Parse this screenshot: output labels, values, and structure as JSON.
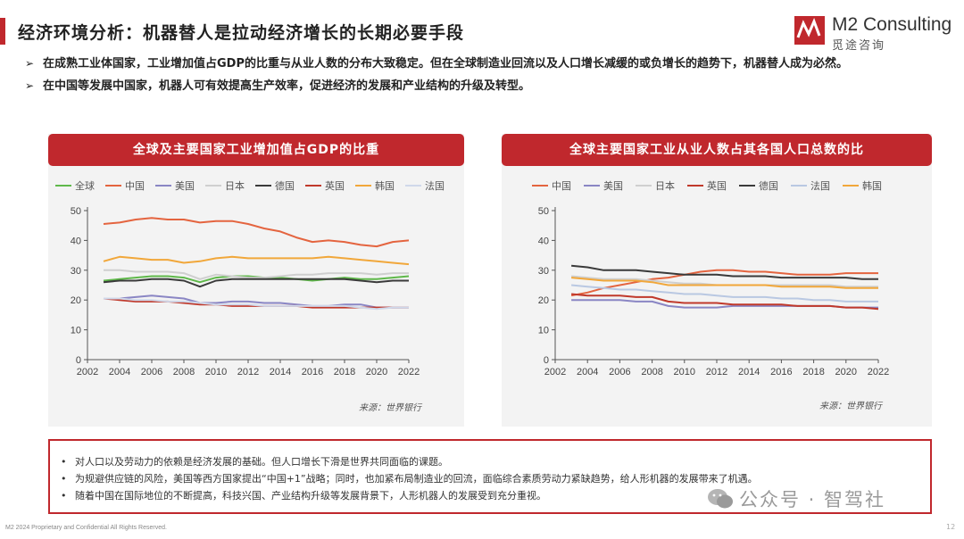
{
  "header": {
    "title": "经济环境分析：机器替人是拉动经济增长的长期必要手段",
    "logo_en": "M2 Consulting",
    "logo_cn": "觅途咨询"
  },
  "bullets": [
    "在成熟工业体国家，工业增加值占GDP的比重与从业人数的分布大致稳定。但在全球制造业回流以及人口增长减缓的或负增长的趋势下，机器替人成为必然。",
    "在中国等发展中国家，机器人可有效提高生产效率，促进经济的发展和产业结构的升级及转型。"
  ],
  "note": {
    "items": [
      "对人口以及劳动力的依赖是经济发展的基础。但人口增长下滑是世界共同面临的课题。",
      "为规避供应链的风险，美国等西方国家提出“中国+1”战略；同时，也加紧布局制造业的回流，面临综合素质劳动力紧缺趋势，给人形机器的发展带来了机遇。",
      "随着中国在国际地位的不断提高，科技兴国、产业结构升级等发展背景下，人形机器人的发展受到充分重视。"
    ]
  },
  "footer": {
    "text": "M2 2024 Proprietary and Confidential All Rights Reserved.",
    "page": "12"
  },
  "watermark": {
    "text": "公众号 · 智驾社"
  },
  "chart_data": [
    {
      "type": "line",
      "title": "全球及主要国家工业增加值占GDP的比重",
      "source": "来源：世界银行",
      "x": [
        2003,
        2004,
        2005,
        2006,
        2007,
        2008,
        2009,
        2010,
        2011,
        2012,
        2013,
        2014,
        2015,
        2016,
        2017,
        2018,
        2019,
        2020,
        2021,
        2022
      ],
      "xticks": [
        2002,
        2004,
        2006,
        2008,
        2010,
        2012,
        2014,
        2016,
        2018,
        2020,
        2022
      ],
      "yticks": [
        0,
        10,
        20,
        30,
        40,
        50
      ],
      "ylim": [
        0,
        50
      ],
      "xlim": [
        2002,
        2022
      ],
      "series": [
        {
          "name": "全球",
          "color": "#5fb84a",
          "values": [
            26.5,
            27,
            27.5,
            28,
            28,
            27.5,
            26,
            27.5,
            28,
            28,
            27.5,
            27.5,
            27,
            26.5,
            27,
            27.5,
            27,
            27,
            27.5,
            28
          ]
        },
        {
          "name": "中国",
          "color": "#e4643f",
          "values": [
            45.5,
            46,
            47,
            47.5,
            47,
            47,
            46,
            46.5,
            46.5,
            45.5,
            44,
            43,
            41,
            39.5,
            40,
            39.5,
            38.5,
            38,
            39.5,
            40
          ]
        },
        {
          "name": "美国",
          "color": "#8a86c4",
          "values": [
            20.5,
            20.5,
            21,
            21.5,
            21,
            20.5,
            19,
            19,
            19.5,
            19.5,
            19,
            19,
            18.5,
            18,
            18,
            18.5,
            18.5,
            17.5,
            17.5,
            17.5
          ]
        },
        {
          "name": "日本",
          "color": "#cfcfcf",
          "values": [
            30,
            30,
            29.5,
            29.5,
            29.5,
            29,
            27,
            28.5,
            28,
            27.5,
            27.5,
            28,
            28.5,
            28.5,
            29,
            29,
            29,
            28.5,
            29,
            29
          ]
        },
        {
          "name": "德国",
          "color": "#3a3a3a",
          "values": [
            26,
            26.5,
            26.5,
            27,
            27,
            26.5,
            24.5,
            26.5,
            27,
            27,
            27,
            27,
            27,
            27,
            27,
            27,
            26.5,
            26,
            26.5,
            26.5
          ]
        },
        {
          "name": "英国",
          "color": "#c0392b",
          "values": [
            20.5,
            20,
            19.5,
            19.5,
            19.5,
            19,
            18.5,
            18.5,
            18,
            18,
            18,
            18,
            18,
            17.5,
            17.5,
            17.5,
            17.5,
            17.5,
            17.5,
            17.5
          ]
        },
        {
          "name": "韩国",
          "color": "#f1a73a",
          "values": [
            33,
            34.5,
            34,
            33.5,
            33.5,
            32.5,
            33,
            34,
            34.5,
            34,
            34,
            34,
            34,
            34,
            34.5,
            34,
            33.5,
            33,
            32.5,
            32
          ]
        },
        {
          "name": "法国",
          "color": "#cfd8ea",
          "values": [
            20.5,
            20.5,
            20,
            20,
            19.5,
            19.5,
            19,
            18.5,
            18.5,
            18.5,
            18,
            18,
            18,
            18,
            18,
            18,
            17.5,
            17,
            17.5,
            17.5
          ]
        }
      ]
    },
    {
      "type": "line",
      "title": "全球主要国家工业从业人数占其各国人口总数的比",
      "source": "来源：世界银行",
      "x": [
        2003,
        2004,
        2005,
        2006,
        2007,
        2008,
        2009,
        2010,
        2011,
        2012,
        2013,
        2014,
        2015,
        2016,
        2017,
        2018,
        2019,
        2020,
        2021,
        2022
      ],
      "xticks": [
        2002,
        2004,
        2006,
        2008,
        2010,
        2012,
        2014,
        2016,
        2018,
        2020,
        2022
      ],
      "yticks": [
        0,
        10,
        20,
        30,
        40,
        50
      ],
      "ylim": [
        0,
        50
      ],
      "xlim": [
        2002,
        2022
      ],
      "series": [
        {
          "name": "中国",
          "color": "#e4643f",
          "values": [
            21.5,
            22.5,
            24,
            25,
            26,
            27,
            27.5,
            28.5,
            29.5,
            30,
            30,
            29.5,
            29.5,
            29,
            28.5,
            28.5,
            28.5,
            29,
            29,
            29
          ]
        },
        {
          "name": "美国",
          "color": "#8a86c4",
          "values": [
            20,
            20,
            20,
            20,
            19.5,
            19.5,
            18,
            17.5,
            17.5,
            17.5,
            18,
            18,
            18,
            18,
            18,
            18,
            18,
            17.5,
            17.5,
            17.5
          ]
        },
        {
          "name": "日本",
          "color": "#cfcfcf",
          "values": [
            28,
            27.5,
            27,
            27,
            27,
            26.5,
            26,
            25.5,
            25.5,
            25,
            25,
            25,
            25,
            25,
            25,
            25,
            25,
            24.5,
            24.5,
            24.5
          ]
        },
        {
          "name": "英国",
          "color": "#c0392b",
          "values": [
            22,
            21.5,
            21.5,
            21.5,
            21,
            21,
            19.5,
            19,
            19,
            19,
            18.5,
            18.5,
            18.5,
            18.5,
            18,
            18,
            18,
            17.5,
            17.5,
            17
          ]
        },
        {
          "name": "德国",
          "color": "#3a3a3a",
          "values": [
            31.5,
            31,
            30,
            30,
            30,
            29.5,
            29,
            28.5,
            28.5,
            28.5,
            28,
            28,
            28,
            27.5,
            27.5,
            27.5,
            27.5,
            27.5,
            27,
            27
          ]
        },
        {
          "name": "法国",
          "color": "#b9c8e2",
          "values": [
            25,
            24.5,
            24,
            23.5,
            23.5,
            23,
            22.5,
            22,
            22,
            21.5,
            21,
            21,
            21,
            20.5,
            20.5,
            20,
            20,
            19.5,
            19.5,
            19.5
          ]
        },
        {
          "name": "韩国",
          "color": "#f1a73a",
          "values": [
            27.5,
            27,
            26.5,
            26.5,
            26.5,
            26,
            25,
            25,
            25,
            25,
            25,
            25,
            25,
            24.5,
            24.5,
            24.5,
            24.5,
            24,
            24,
            24
          ]
        }
      ]
    }
  ]
}
